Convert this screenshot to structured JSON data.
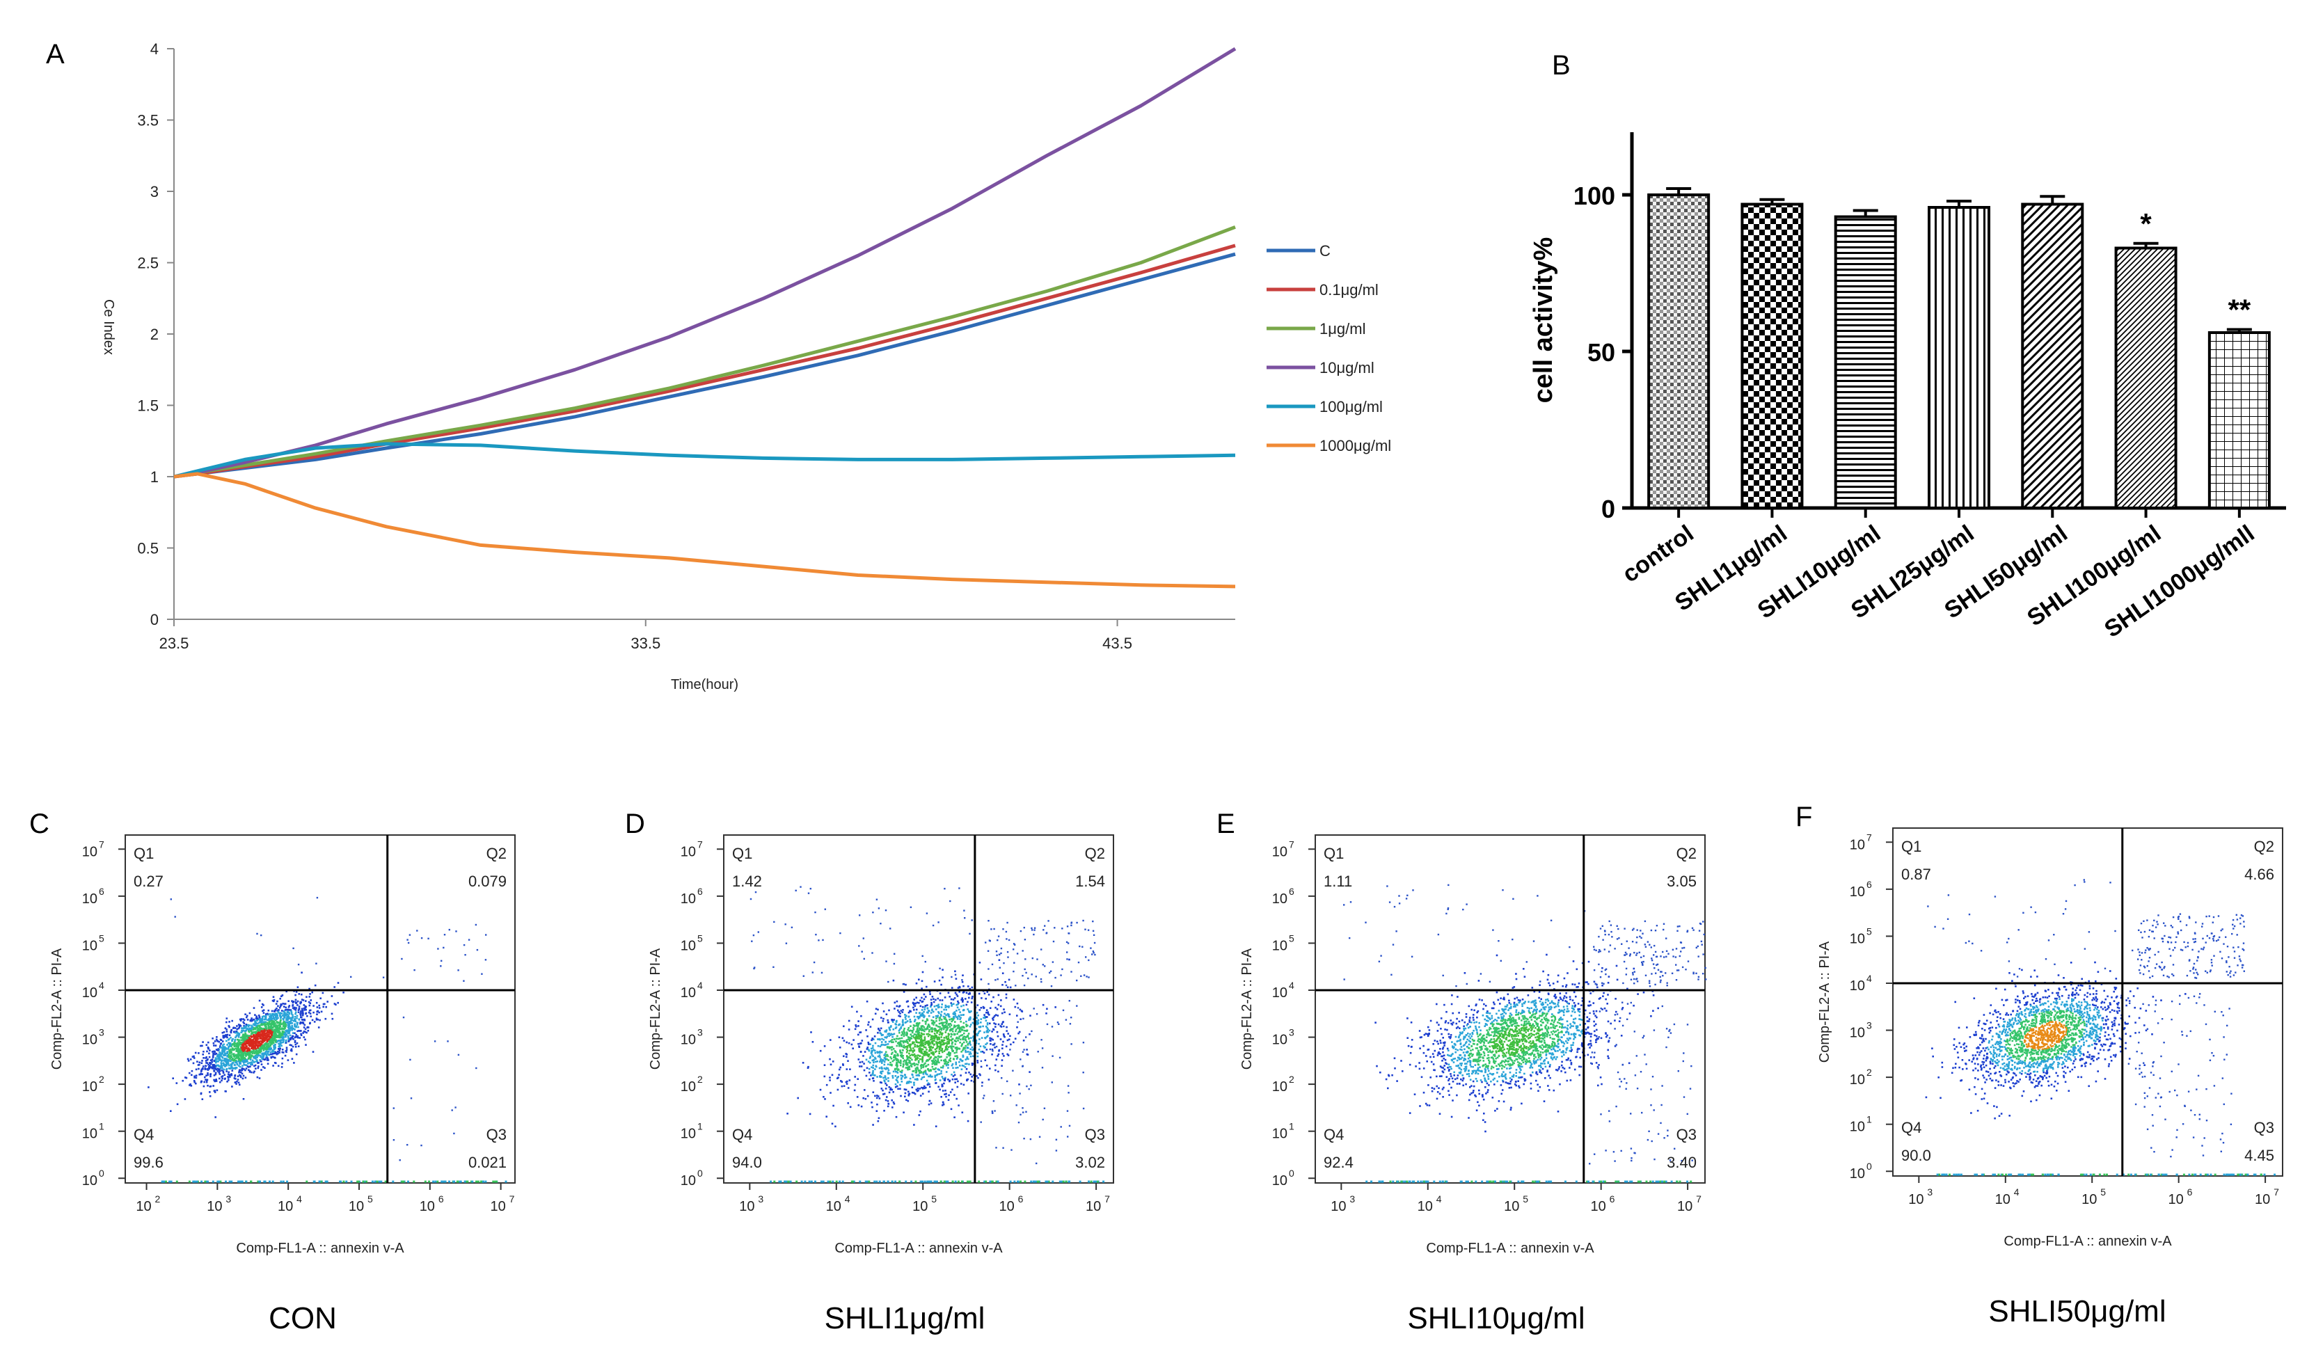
{
  "panel_labels": [
    "A",
    "B",
    "C",
    "D",
    "E",
    "F"
  ],
  "chart_data": [
    {
      "panel": "A",
      "type": "line",
      "title": "",
      "xlabel": "Time(hour)",
      "ylabel": "Ce Index",
      "xlim": [
        23.5,
        46.0
      ],
      "ylim": [
        0,
        4
      ],
      "x_ticks": [
        "23.5",
        "33.5",
        "43.5"
      ],
      "y_ticks": [
        "0",
        "0.5",
        "1",
        "1.5",
        "2",
        "2.5",
        "3",
        "3.5",
        "4"
      ],
      "x": [
        23.5,
        24.0,
        25.0,
        26.5,
        28.0,
        30.0,
        32.0,
        34.0,
        36.0,
        38.0,
        40.0,
        42.0,
        44.0,
        46.0
      ],
      "series": [
        {
          "name": "C",
          "color": "#2f6bb5",
          "values": [
            1.0,
            1.02,
            1.06,
            1.12,
            1.2,
            1.3,
            1.42,
            1.56,
            1.7,
            1.85,
            2.02,
            2.2,
            2.38,
            2.56
          ]
        },
        {
          "name": "0.1μg/ml",
          "color": "#c8403e",
          "values": [
            1.0,
            1.02,
            1.07,
            1.14,
            1.23,
            1.34,
            1.46,
            1.6,
            1.75,
            1.9,
            2.07,
            2.25,
            2.43,
            2.62
          ]
        },
        {
          "name": "1μg/ml",
          "color": "#79a849",
          "values": [
            1.0,
            1.03,
            1.08,
            1.16,
            1.25,
            1.36,
            1.48,
            1.62,
            1.78,
            1.95,
            2.12,
            2.3,
            2.5,
            2.75
          ]
        },
        {
          "name": "10μg/ml",
          "color": "#7b51a0",
          "values": [
            1.0,
            1.03,
            1.1,
            1.22,
            1.37,
            1.55,
            1.75,
            1.98,
            2.25,
            2.55,
            2.88,
            3.25,
            3.6,
            4.0
          ]
        },
        {
          "name": "100μg/ml",
          "color": "#1a98c0",
          "values": [
            1.0,
            1.04,
            1.12,
            1.2,
            1.23,
            1.22,
            1.18,
            1.15,
            1.13,
            1.12,
            1.12,
            1.13,
            1.14,
            1.15
          ]
        },
        {
          "name": "1000μg/ml",
          "color": "#f08a35",
          "values": [
            1.0,
            1.02,
            0.95,
            0.78,
            0.65,
            0.52,
            0.47,
            0.43,
            0.37,
            0.31,
            0.28,
            0.26,
            0.24,
            0.23
          ]
        }
      ]
    },
    {
      "panel": "B",
      "type": "bar",
      "title": "",
      "xlabel": "",
      "ylabel": "cell activity%",
      "ylim": [
        0,
        120
      ],
      "y_ticks": [
        "0",
        "50",
        "100"
      ],
      "categories": [
        "control",
        "SHLI1μg/ml",
        "SHLI10μg/ml",
        "SHLI25μg/ml",
        "SHLI50μg/ml",
        "SHLI100μg/ml",
        "SHLI1000μg/mll"
      ],
      "values": [
        100,
        97,
        93,
        96,
        97,
        83,
        56
      ],
      "errors": [
        2,
        1.5,
        2,
        2,
        2.5,
        1.5,
        1
      ],
      "annotations": [
        "",
        "",
        "",
        "",
        "",
        "*",
        "**"
      ]
    },
    {
      "panel": "C",
      "type": "scatter",
      "title": "CON",
      "xlabel": "Comp-FL1-A :: annexin v-A",
      "ylabel": "Comp-FL2-A :: PI-A",
      "x_tick_exponents": [
        2,
        3,
        4,
        5,
        6,
        7
      ],
      "y_tick_exponents": [
        0,
        1,
        2,
        3,
        4,
        5,
        6,
        7
      ],
      "xlim_log10": [
        1.7,
        7.2
      ],
      "ylim_log10": [
        -0.1,
        7.3
      ],
      "gate_log10": {
        "x": 5.4,
        "y": 4.0
      },
      "quadrants": [
        {
          "name": "Q1",
          "value": "0.27"
        },
        {
          "name": "Q2",
          "value": "0.079"
        },
        {
          "name": "Q3",
          "value": "0.021"
        },
        {
          "name": "Q4",
          "value": "99.6"
        }
      ]
    },
    {
      "panel": "D",
      "type": "scatter",
      "title": "SHLI1μg/ml",
      "xlabel": "Comp-FL1-A :: annexin v-A",
      "ylabel": "Comp-FL2-A :: PI-A",
      "x_tick_exponents": [
        3,
        4,
        5,
        6,
        7
      ],
      "y_tick_exponents": [
        0,
        1,
        2,
        3,
        4,
        5,
        6,
        7
      ],
      "xlim_log10": [
        2.7,
        7.2
      ],
      "ylim_log10": [
        -0.1,
        7.3
      ],
      "gate_log10": {
        "x": 5.6,
        "y": 4.0
      },
      "quadrants": [
        {
          "name": "Q1",
          "value": "1.42"
        },
        {
          "name": "Q2",
          "value": "1.54"
        },
        {
          "name": "Q3",
          "value": "3.02"
        },
        {
          "name": "Q4",
          "value": "94.0"
        }
      ]
    },
    {
      "panel": "E",
      "type": "scatter",
      "title": "SHLI10μg/ml",
      "xlabel": "Comp-FL1-A :: annexin v-A",
      "ylabel": "Comp-FL2-A :: PI-A",
      "x_tick_exponents": [
        3,
        4,
        5,
        6,
        7
      ],
      "y_tick_exponents": [
        0,
        1,
        2,
        3,
        4,
        5,
        6,
        7
      ],
      "xlim_log10": [
        2.7,
        7.2
      ],
      "ylim_log10": [
        -0.1,
        7.3
      ],
      "gate_log10": {
        "x": 5.8,
        "y": 4.0
      },
      "quadrants": [
        {
          "name": "Q1",
          "value": "1.11"
        },
        {
          "name": "Q2",
          "value": "3.05"
        },
        {
          "name": "Q3",
          "value": "3.40"
        },
        {
          "name": "Q4",
          "value": "92.4"
        }
      ]
    },
    {
      "panel": "F",
      "type": "scatter",
      "title": "SHLI50μg/ml",
      "xlabel": "Comp-FL1-A :: annexin v-A",
      "ylabel": "Comp-FL2-A :: PI-A",
      "x_tick_exponents": [
        3,
        4,
        5,
        6,
        7
      ],
      "y_tick_exponents": [
        0,
        1,
        2,
        3,
        4,
        5,
        6,
        7
      ],
      "xlim_log10": [
        2.7,
        7.2
      ],
      "ylim_log10": [
        -0.1,
        7.3
      ],
      "gate_log10": {
        "x": 5.35,
        "y": 4.0
      },
      "quadrants": [
        {
          "name": "Q1",
          "value": "0.87"
        },
        {
          "name": "Q2",
          "value": "4.66"
        },
        {
          "name": "Q3",
          "value": "4.45"
        },
        {
          "name": "Q4",
          "value": "90.0"
        }
      ]
    }
  ]
}
